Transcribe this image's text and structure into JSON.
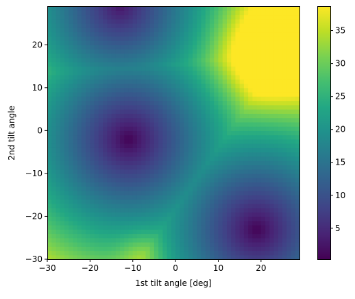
{
  "chart_data": {
    "type": "heatmap",
    "title": "",
    "xlabel": "1st tilt angle [deg]",
    "ylabel": "2nd tilt angle",
    "xlim": [
      -30,
      29
    ],
    "ylim": [
      -30,
      29
    ],
    "grid": false,
    "xticks": [
      -30,
      -20,
      -10,
      0,
      10,
      20
    ],
    "yticks": [
      -30,
      -20,
      -10,
      0,
      10,
      20
    ],
    "xtick_labels": [
      "−30",
      "−20",
      "−10",
      "0",
      "10",
      "20"
    ],
    "ytick_labels": [
      "−30",
      "−20",
      "−10",
      "0",
      "10",
      "20"
    ],
    "resolution_deg": 1,
    "colormap": "viridis",
    "colorbar": {
      "range": [
        0.3,
        38.7
      ],
      "ticks": [
        5,
        10,
        15,
        20,
        25,
        30,
        35
      ],
      "tick_labels": [
        "5",
        "10",
        "15",
        "20",
        "25",
        "30",
        "35"
      ]
    },
    "features": {
      "minima": [
        {
          "x": -11,
          "y": -2,
          "value": 0.5
        },
        {
          "x": 19,
          "y": -23,
          "value": 0.5
        },
        {
          "x": -13,
          "y": 29,
          "value": 2.5
        }
      ],
      "maximum": {
        "x": 22,
        "y": 18,
        "value": 38.5
      },
      "secondary_high": {
        "x": -8,
        "y": -29,
        "value": 27
      }
    }
  }
}
